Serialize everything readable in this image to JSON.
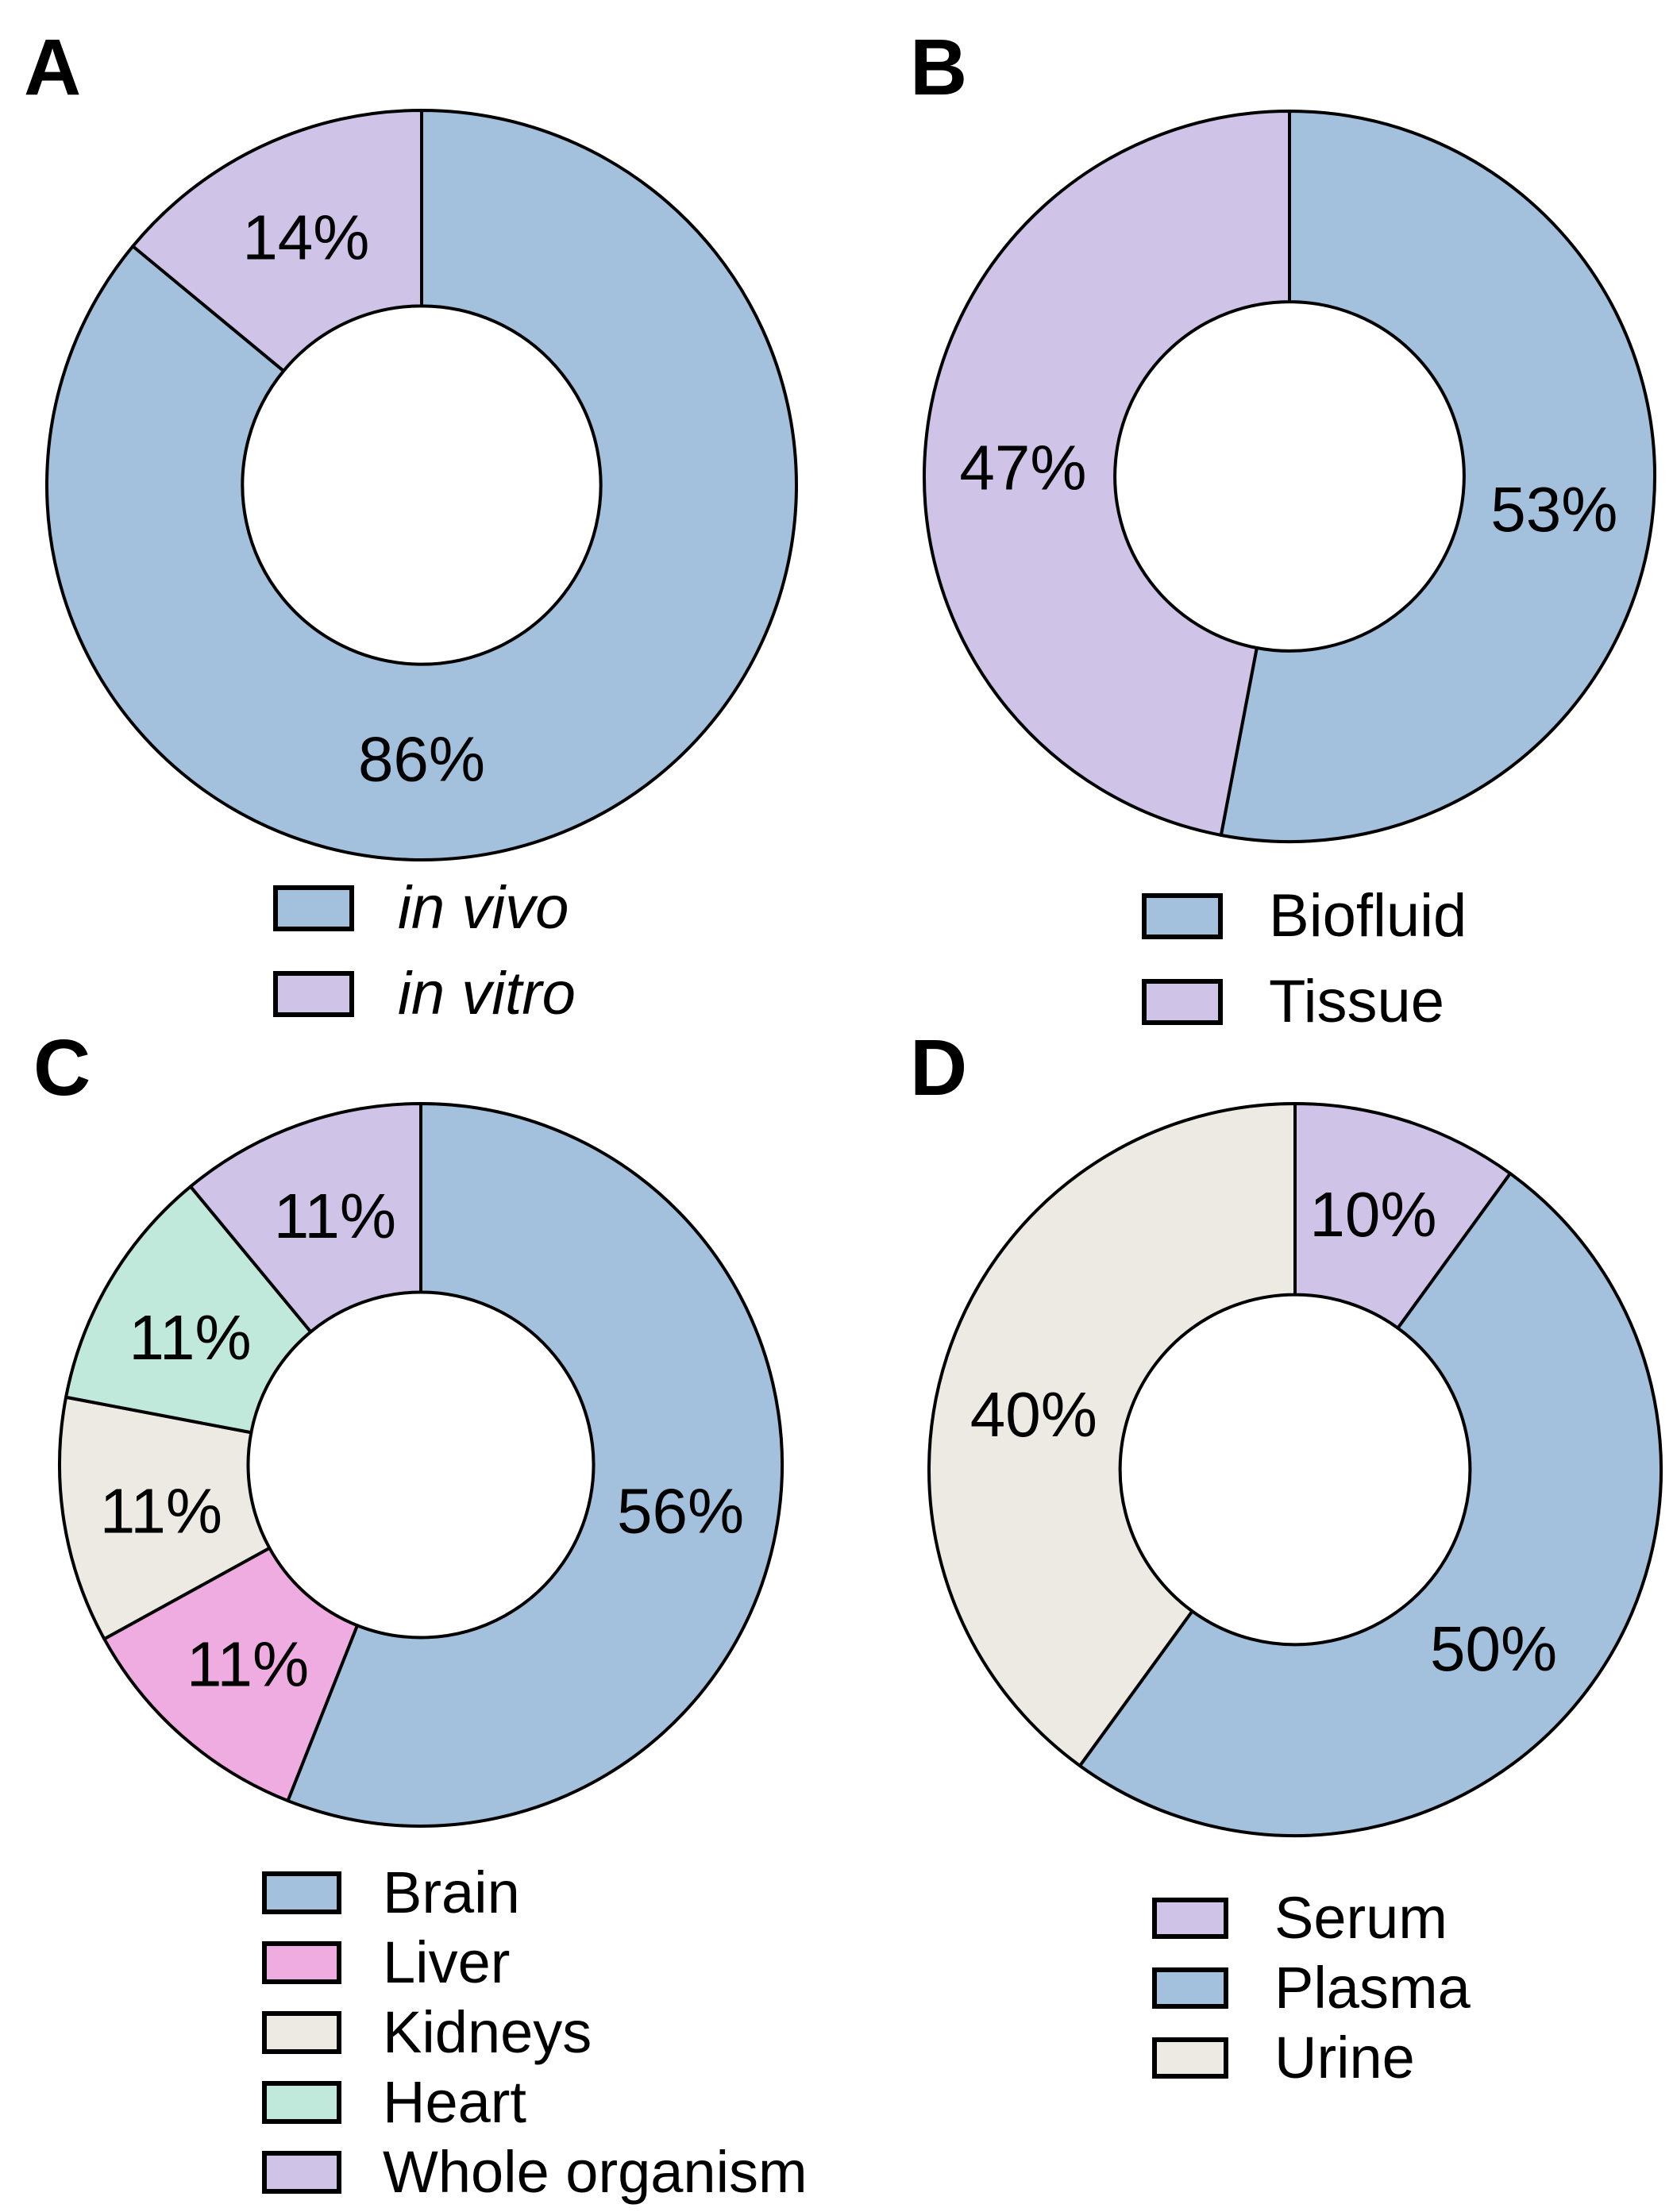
{
  "figure": {
    "background": "#ffffff",
    "outline_color": "#000000",
    "text_color": "#000000",
    "palette": {
      "blue": "#A3C0DC",
      "lavender": "#CFC3E7",
      "pink": "#EFACE1",
      "mint": "#C0E9DB",
      "offwhite": "#EDEAE3"
    }
  },
  "chart_data": [
    {
      "panel_label": "A",
      "type": "pie",
      "subtype": "donut",
      "start_angle": "12-oclock",
      "direction": "clockwise",
      "legend_position": "bottom",
      "legend_italic": true,
      "slices": [
        {
          "label": "in vivo",
          "value_pct": 86,
          "data_label": "86%",
          "color": "#A3C0DC",
          "label_angle_deg": 180
        },
        {
          "label": "in vitro",
          "value_pct": 14,
          "data_label": "14%",
          "color": "#CFC3E7",
          "label_angle_deg": 335
        }
      ]
    },
    {
      "panel_label": "B",
      "type": "pie",
      "subtype": "donut",
      "start_angle": "12-oclock",
      "direction": "clockwise",
      "legend_position": "bottom",
      "legend_italic": false,
      "slices": [
        {
          "label": "Biofluid",
          "value_pct": 53,
          "data_label": "53%",
          "color": "#A3C0DC",
          "label_angle_deg": 97
        },
        {
          "label": "Tissue",
          "value_pct": 47,
          "data_label": "47%",
          "color": "#CFC3E7",
          "label_angle_deg": 272
        }
      ]
    },
    {
      "panel_label": "C",
      "type": "pie",
      "subtype": "donut",
      "start_angle": "12-oclock",
      "direction": "clockwise",
      "legend_position": "bottom",
      "legend_italic": false,
      "slices": [
        {
          "label": "Brain",
          "value_pct": 56,
          "data_label": "56%",
          "color": "#A3C0DC",
          "label_angle_deg": 100
        },
        {
          "label": "Liver",
          "value_pct": 11,
          "data_label": "11%",
          "color": "#EFACE1",
          "label_angle_deg": 221
        },
        {
          "label": "Kidneys",
          "value_pct": 11,
          "data_label": "11%",
          "color": "#EDEAE3",
          "label_angle_deg": 260
        },
        {
          "label": "Heart",
          "value_pct": 11,
          "data_label": "11%",
          "color": "#C0E9DB",
          "label_angle_deg": 299
        },
        {
          "label": "Whole organism",
          "value_pct": 11,
          "data_label": "11%",
          "color": "#CFC3E7",
          "label_angle_deg": 341
        }
      ]
    },
    {
      "panel_label": "D",
      "type": "pie",
      "subtype": "donut",
      "start_angle": "12-oclock",
      "direction": "clockwise",
      "legend_position": "bottom",
      "legend_italic": false,
      "slices": [
        {
          "label": "Serum",
          "value_pct": 10,
          "data_label": "10%",
          "color": "#CFC3E7",
          "label_angle_deg": 17
        },
        {
          "label": "Plasma",
          "value_pct": 50,
          "data_label": "50%",
          "color": "#A3C0DC",
          "label_angle_deg": 132
        },
        {
          "label": "Urine",
          "value_pct": 40,
          "data_label": "40%",
          "color": "#EDEAE3",
          "label_angle_deg": 282
        }
      ]
    }
  ]
}
